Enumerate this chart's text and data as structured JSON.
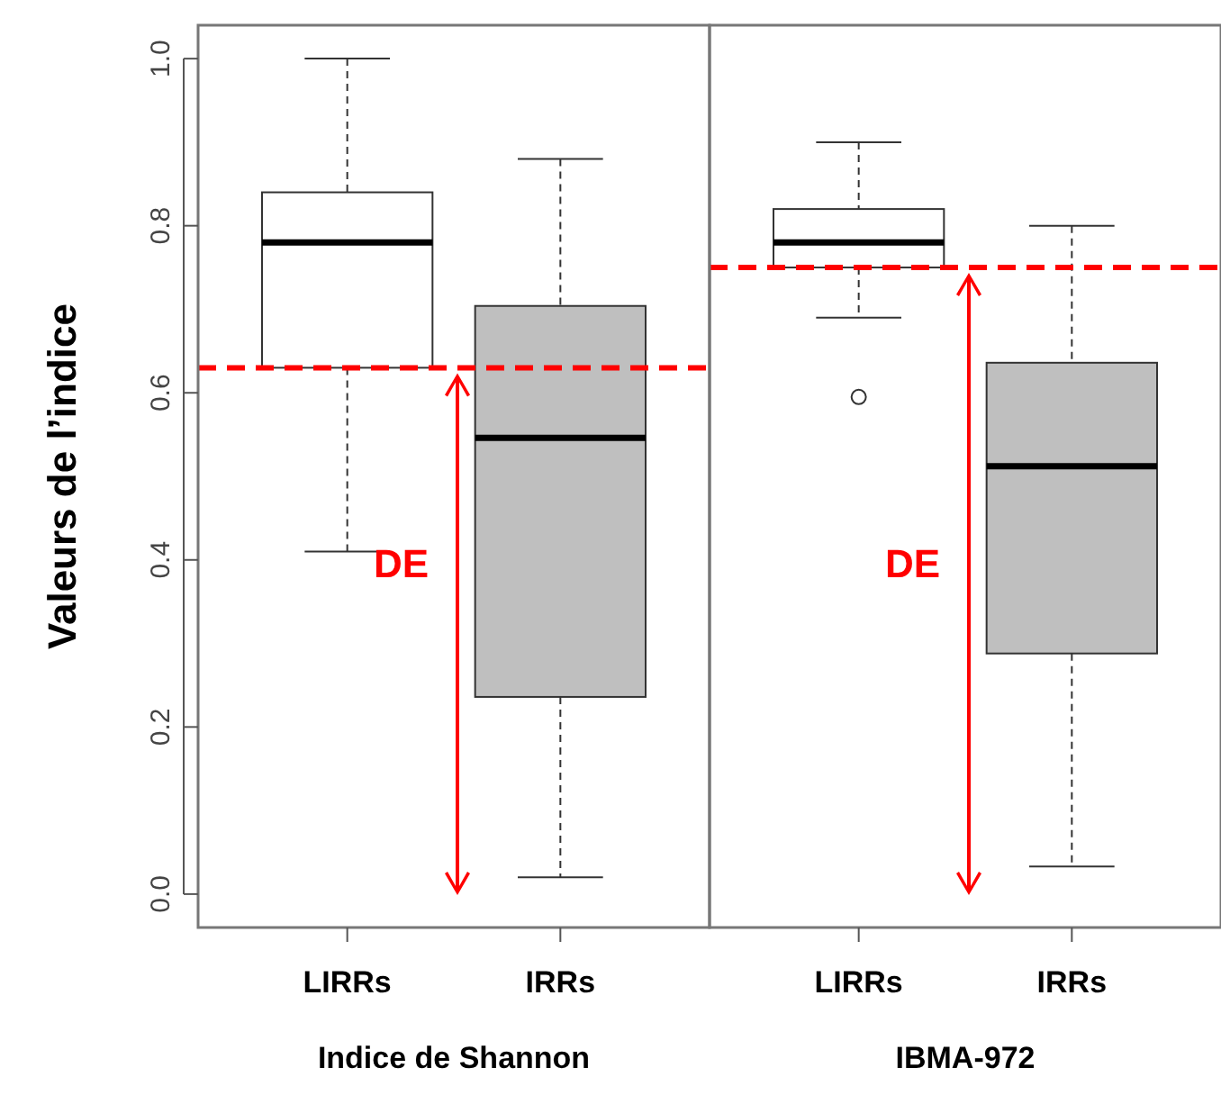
{
  "chart_data": [
    {
      "type": "box",
      "ylabel": "Valeurs de l’indice",
      "xlabel": "Indice de Shannon",
      "categories": [
        "LIRRs",
        "IRRs"
      ],
      "colors": [
        "#ffffff",
        "#bfbfbf"
      ],
      "boxes": [
        {
          "low": 0.41,
          "q1": 0.63,
          "median": 0.78,
          "q3": 0.84,
          "high": 1.0
        },
        {
          "low": 0.02,
          "q1": 0.236,
          "median": 0.546,
          "q3": 0.704,
          "high": 0.88
        }
      ],
      "ylim": [
        -0.04,
        1.04
      ],
      "yticks": [
        {
          "value": 0,
          "label": "0.0"
        },
        0.2,
        0.4,
        0.6,
        0.8,
        {
          "value": 1,
          "label": "1.0"
        }
      ],
      "ref_lines": [
        {
          "axis": "y",
          "value": 0.63,
          "color": "#ff0000",
          "line_style": "dashed"
        }
      ],
      "annotations": [
        "DE"
      ]
    },
    {
      "type": "box",
      "xlabel": "IBMA-972",
      "categories": [
        "LIRRs",
        "IRRs"
      ],
      "colors": [
        "#ffffff",
        "#bfbfbf"
      ],
      "boxes": [
        {
          "low": 0.69,
          "q1": 0.75,
          "median": 0.78,
          "q3": 0.82,
          "high": 0.9,
          "outliers": [
            0.595
          ]
        },
        {
          "low": 0.033,
          "q1": 0.288,
          "median": 0.512,
          "q3": 0.636,
          "high": 0.8
        }
      ],
      "ylim": [
        -0.04,
        1.04
      ],
      "tick_labels": "x",
      "ref_lines": [
        {
          "axis": "y",
          "value": 0.75,
          "color": "#ff0000",
          "line_style": "dashed"
        }
      ],
      "annotations": [
        "DE"
      ]
    }
  ]
}
